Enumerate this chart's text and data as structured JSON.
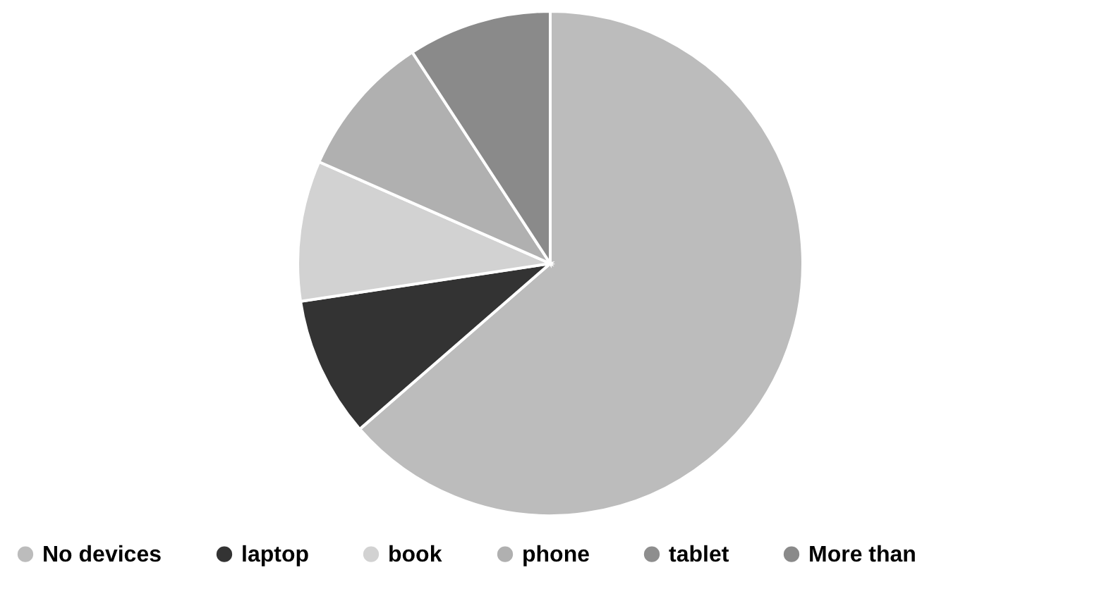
{
  "chart_data": {
    "type": "pie",
    "categories": [
      "No devices",
      "laptop",
      "book",
      "phone",
      "tablet",
      "More than"
    ],
    "values": [
      63.6,
      9.0,
      9.0,
      9.2,
      0,
      9.2
    ],
    "colors": [
      "#bcbcbc",
      "#333333",
      "#d2d2d2",
      "#b0b0b0",
      "#8e8e8e",
      "#8a8a8a"
    ],
    "legend": "bottom"
  }
}
